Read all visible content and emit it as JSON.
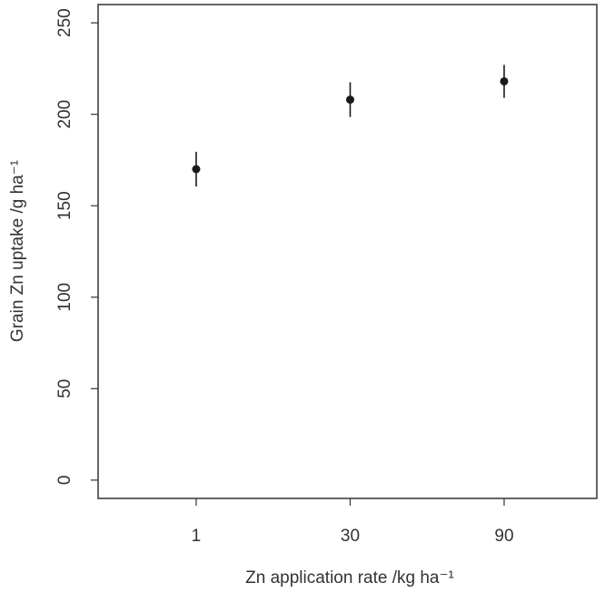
{
  "chart_data": {
    "type": "errorbar-dot",
    "x_label": "Zn application rate /kg ha⁻¹",
    "y_label": "Grain Zn uptake /g ha⁻¹",
    "categories": [
      "1",
      "30",
      "90"
    ],
    "values": [
      170,
      208,
      218
    ],
    "errors": [
      9.5,
      9.5,
      9
    ],
    "color": "#1a1a1a",
    "ylim": [
      -10,
      260
    ],
    "yticks": [
      0,
      50,
      100,
      150,
      200,
      250
    ]
  }
}
